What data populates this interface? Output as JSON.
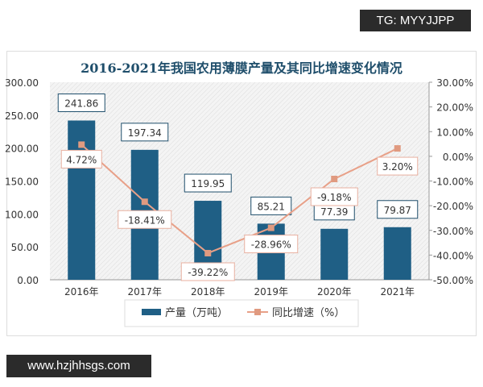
{
  "watermark_top": "TG: MYYJJPP",
  "watermark_bottom": "www.hzjhhsgs.com",
  "chart_data": {
    "type": "bar+line",
    "title": "2016-2021年我国农用薄膜产量及其同比增速变化情况",
    "categories": [
      "2016年",
      "2017年",
      "2018年",
      "2019年",
      "2020年",
      "2021年"
    ],
    "series": [
      {
        "name": "产量（万吨）",
        "type": "bar",
        "axis": "left",
        "values": [
          241.86,
          197.34,
          119.95,
          85.21,
          77.39,
          79.87
        ],
        "labels": [
          "241.86",
          "197.34",
          "119.95",
          "85.21",
          "77.39",
          "79.87"
        ],
        "color": "#1f5f85"
      },
      {
        "name": "同比增速（%）",
        "type": "line",
        "axis": "right",
        "values": [
          4.72,
          -18.41,
          -39.22,
          -28.96,
          -9.18,
          3.2
        ],
        "labels": [
          "4.72%",
          "-18.41%",
          "-39.22%",
          "-28.96%",
          "-9.18%",
          "3.20%"
        ],
        "color": "#e8a088"
      }
    ],
    "left_axis": {
      "ylim": [
        0,
        300
      ],
      "ticks": [
        "0.00",
        "50.00",
        "100.00",
        "150.00",
        "200.00",
        "250.00",
        "300.00"
      ]
    },
    "right_axis": {
      "ylim": [
        -50,
        30
      ],
      "ticks": [
        "-50.00%",
        "-40.00%",
        "-30.00%",
        "-20.00%",
        "-10.00%",
        "0.00%",
        "10.00%",
        "20.00%",
        "30.00%"
      ]
    },
    "legend": "bottom",
    "grid": false
  }
}
